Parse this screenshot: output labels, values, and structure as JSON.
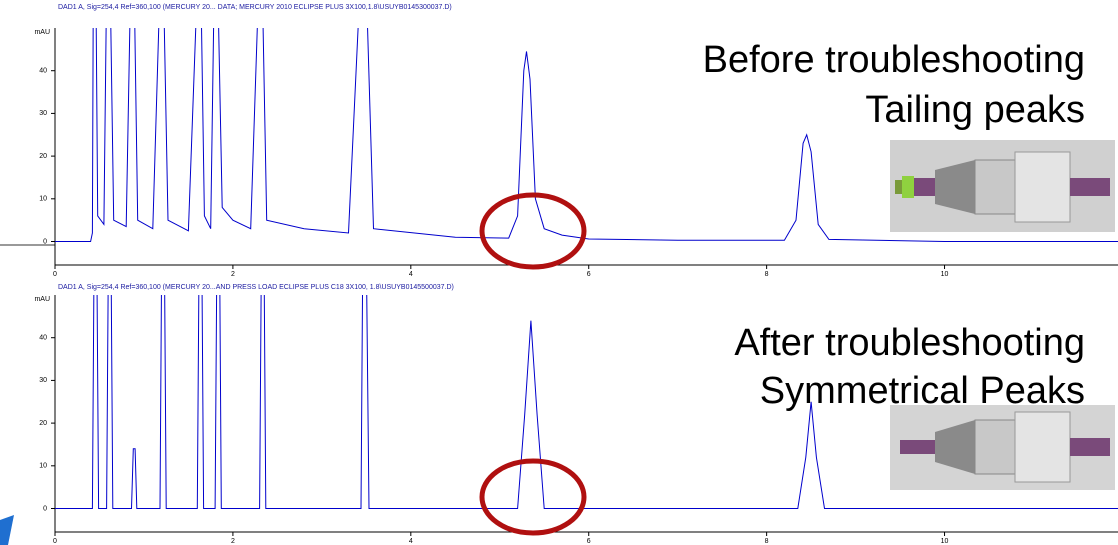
{
  "chart_data": [
    {
      "type": "line",
      "title": "DAD1 A, Sig=254,4 Ref=360,100 (MERCURY 20... DATA; MERCURY 2010 ECLIPSE PLUS 3X100,1.8\\USUYB0145300037.D)",
      "y_label": "mAU",
      "annotations": [
        "Before troubleshooting",
        "Tailing peaks"
      ],
      "xlim": [
        0,
        11.95
      ],
      "ylim": [
        -5.5,
        50
      ],
      "xticks": [
        0,
        2,
        4,
        6,
        8,
        10
      ],
      "yticks": [
        0,
        10,
        20,
        30,
        40
      ],
      "color": "#0000cc",
      "x": [
        0,
        0.4,
        0.42,
        0.43,
        0.46,
        0.48,
        0.55,
        0.58,
        0.62,
        0.66,
        0.8,
        0.85,
        0.89,
        0.93,
        1.1,
        1.18,
        1.22,
        1.27,
        1.5,
        1.6,
        1.64,
        1.68,
        1.75,
        1.79,
        1.83,
        1.88,
        2.0,
        2.2,
        2.29,
        2.33,
        2.38,
        2.8,
        3.3,
        3.43,
        3.5,
        3.58,
        4.5,
        5.1,
        5.2,
        5.27,
        5.3,
        5.34,
        5.4,
        5.5,
        5.7,
        6,
        7,
        8.2,
        8.33,
        8.41,
        8.45,
        8.5,
        8.58,
        8.7,
        10,
        11.95
      ],
      "values": [
        0,
        0,
        2,
        60,
        60,
        6,
        4,
        60,
        60,
        5,
        3.5,
        60,
        60,
        5,
        3,
        60,
        60,
        5,
        2.5,
        60,
        60,
        6,
        3,
        60,
        60,
        8,
        5,
        3,
        60,
        60,
        5,
        3,
        2,
        60,
        60,
        3,
        1,
        0.8,
        6,
        40,
        44.5,
        38,
        10,
        3,
        1.5,
        0.6,
        0.3,
        0.3,
        5,
        23,
        25,
        21,
        4,
        0.5,
        0,
        0
      ]
    },
    {
      "type": "line",
      "title": "DAD1 A, Sig=254,4 Ref=360,100 (MERCURY 20...AND PRESS LOAD ECLIPSE PLUS C18 3X100, 1.8\\USUYB0145500037.D)",
      "y_label": "mAU",
      "annotations": [
        "After troubleshooting",
        "Symmetrical Peaks"
      ],
      "xlim": [
        0,
        11.95
      ],
      "ylim": [
        -5.5,
        50
      ],
      "xticks": [
        0,
        2,
        4,
        6,
        8,
        10
      ],
      "yticks": [
        0,
        10,
        20,
        30,
        40
      ],
      "color": "#0000cc",
      "x": [
        0,
        0.42,
        0.44,
        0.47,
        0.49,
        0.58,
        0.6,
        0.63,
        0.65,
        0.86,
        0.88,
        0.9,
        0.92,
        1.18,
        1.2,
        1.23,
        1.25,
        1.6,
        1.62,
        1.65,
        1.67,
        1.8,
        1.82,
        1.85,
        1.87,
        2.3,
        2.32,
        2.35,
        2.37,
        3.44,
        3.46,
        3.5,
        3.53,
        5.2,
        5.28,
        5.35,
        5.42,
        5.5,
        8.35,
        8.44,
        8.5,
        8.56,
        8.65,
        11.95
      ],
      "values": [
        0,
        0,
        60,
        60,
        0,
        0,
        60,
        60,
        0,
        0,
        14,
        14,
        0,
        0,
        60,
        60,
        0,
        0,
        60,
        60,
        0,
        0,
        60,
        60,
        0,
        0,
        60,
        60,
        0,
        0,
        60,
        60,
        0,
        0,
        22,
        44,
        22,
        0,
        0,
        12,
        25,
        12,
        0,
        0
      ]
    }
  ]
}
